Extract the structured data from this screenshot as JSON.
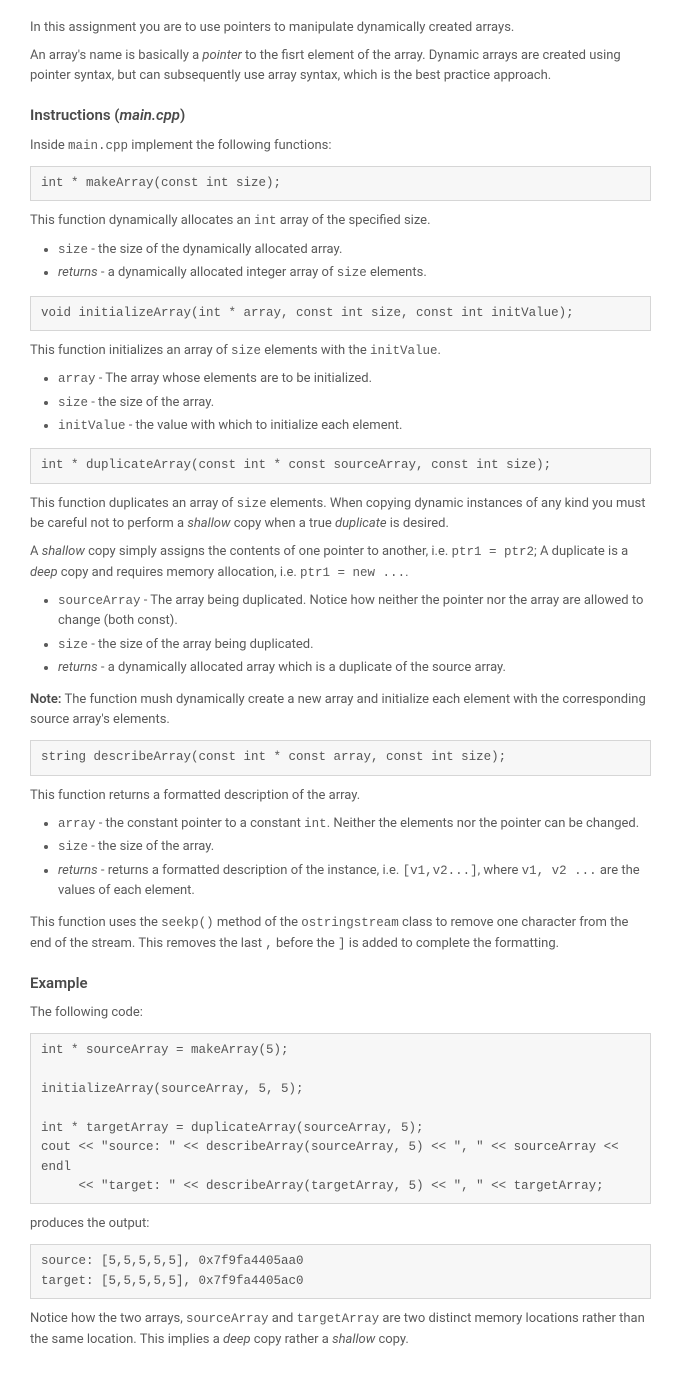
{
  "intro": {
    "p1": "In this assignment you are to use pointers to manipulate dynamically created arrays.",
    "p2_a": "An array's name is basically a ",
    "p2_b": "pointer",
    "p2_c": " to the fisrt element of the array. Dynamic arrays are created using pointer syntax, but can subsequently use array syntax, which is the best practice approach."
  },
  "instructions": {
    "heading_a": "Instructions (",
    "heading_b": "main.cpp",
    "heading_c": ")",
    "inside_a": "Inside ",
    "inside_b": "main.cpp",
    "inside_c": " implement the following functions:"
  },
  "fn1": {
    "sig": "int * makeArray(const int size);",
    "desc_a": "This function dynamically allocates an ",
    "desc_b": "int",
    "desc_c": " array of the specified size.",
    "li1_a": "size",
    "li1_b": " - the size of the dynamically allocated array.",
    "li2_a": "returns",
    "li2_b": " - a dynamically allocated integer array of ",
    "li2_c": "size",
    "li2_d": " elements."
  },
  "fn2": {
    "sig": "void initializeArray(int * array, const int size, const int initValue);",
    "desc_a": "This function initializes an array of ",
    "desc_b": "size",
    "desc_c": " elements with the ",
    "desc_d": "initValue",
    "desc_e": ".",
    "li1_a": "array",
    "li1_b": " - The array whose elements are to be initialized.",
    "li2_a": "size",
    "li2_b": " - the size of the array.",
    "li3_a": "initValue",
    "li3_b": " - the value with which to initialize each element."
  },
  "fn3": {
    "sig": "int * duplicateArray(const int * const sourceArray, const int size);",
    "desc_a": "This function duplicates an array of ",
    "desc_b": "size",
    "desc_c": " elements. When copying dynamic instances of any kind you must be careful not to perform a ",
    "desc_d": "shallow",
    "desc_e": " copy when a true ",
    "desc_f": "duplicate",
    "desc_g": " is desired.",
    "shallow_a": "A ",
    "shallow_b": "shallow",
    "shallow_c": " copy simply assigns the contents of one pointer to another, i.e. ",
    "shallow_d": "ptr1 = ptr2",
    "shallow_e": "; A duplicate is a ",
    "shallow_f": "deep",
    "shallow_g": " copy and requires memory allocation, i.e. ",
    "shallow_h": "ptr1 = new ...",
    "shallow_i": ".",
    "li1_a": "sourceArray",
    "li1_b": " - The array being duplicated. Notice how neither the pointer nor the array are allowed to change (both const).",
    "li2_a": "size",
    "li2_b": " - the size of the array being duplicated.",
    "li3_a": "returns",
    "li3_b": " - a dynamically allocated array which is a duplicate of the source array.",
    "note_a": "Note:",
    "note_b": " The function mush dynamically create a new array and initialize each element with the corresponding source array's elements."
  },
  "fn4": {
    "sig": "string describeArray(const int * const array, const int size);",
    "desc": "This function returns a formatted description of the array.",
    "li1_a": "array",
    "li1_b": " - the constant pointer to a constant ",
    "li1_c": "int",
    "li1_d": ". Neither the elements nor the pointer can be changed.",
    "li2_a": "size",
    "li2_b": " - the size of the array.",
    "li3_a": "returns",
    "li3_b": " - returns a formatted description of the instance, i.e. ",
    "li3_c": "[v1,v2...]",
    "li3_d": ", where ",
    "li3_e": "v1, v2 ...",
    "li3_f": " are the values of each element.",
    "uses_a": "This function uses the ",
    "uses_b": "seekp()",
    "uses_c": " method of the ",
    "uses_d": "ostringstream",
    "uses_e": " class to remove one character from the end of the stream. This removes the last ",
    "uses_f": ",",
    "uses_g": " before the ",
    "uses_h": "]",
    "uses_i": " is added to complete the formatting."
  },
  "example": {
    "heading": "Example",
    "lead": "The following code:",
    "code": "int * sourceArray = makeArray(5);\n\ninitializeArray(sourceArray, 5, 5);\n\nint * targetArray = duplicateArray(sourceArray, 5);\ncout << \"source: \" << describeArray(sourceArray, 5) << \", \" << sourceArray << endl\n     << \"target: \" << describeArray(targetArray, 5) << \", \" << targetArray;",
    "produces": "produces the output:",
    "output": "source: [5,5,5,5,5], 0x7f9fa4405aa0\ntarget: [5,5,5,5,5], 0x7f9fa4405ac0",
    "notice_a": "Notice how the two arrays, ",
    "notice_b": "sourceArray",
    "notice_c": " and ",
    "notice_d": "targetArray",
    "notice_e": " are two distinct memory locations rather than the same location. This implies a ",
    "notice_f": "deep",
    "notice_g": " copy rather a ",
    "notice_h": "shallow",
    "notice_i": " copy."
  }
}
